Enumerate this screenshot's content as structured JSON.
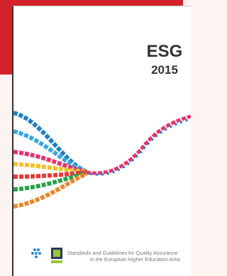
{
  "cover": {
    "title": "ESG",
    "year": "2015",
    "subtitle_line1": "Standards and Guidelines for Quality Assurance",
    "subtitle_line2": "in the European Higher Education Area"
  }
}
